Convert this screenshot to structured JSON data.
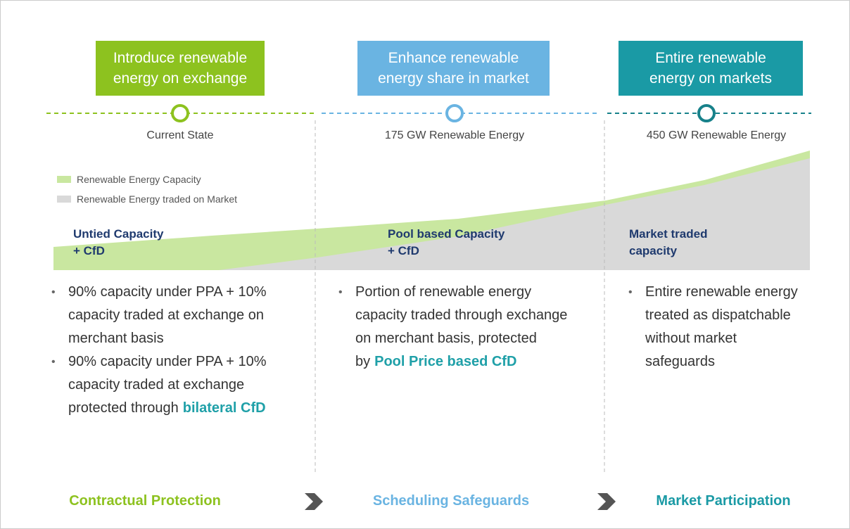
{
  "stages": [
    {
      "header": [
        "Introduce renewable",
        "energy on exchange"
      ],
      "milestone": "Current State",
      "capacity": [
        "Untied Capacity",
        "+ CfD"
      ],
      "bullets": [
        {
          "text": "90% capacity under PPA + 10% capacity traded at exchange on merchant basis"
        },
        {
          "text": "90% capacity under PPA + 10% capacity traded at exchange protected through",
          "emphasis": "bilateral CfD"
        }
      ],
      "footer": "Contractual Protection"
    },
    {
      "header": [
        "Enhance renewable",
        "energy share in market"
      ],
      "milestone": "175 GW Renewable Energy",
      "capacity": [
        "Pool based Capacity",
        "+ CfD"
      ],
      "bullets": [
        {
          "text": "Portion of renewable energy capacity traded through exchange on merchant basis, protected by",
          "emphasis": "Pool Price based CfD"
        }
      ],
      "footer": "Scheduling Safeguards"
    },
    {
      "header": [
        "Entire renewable",
        "energy on markets"
      ],
      "milestone": "450 GW Renewable Energy",
      "capacity": [
        "Market traded",
        "capacity"
      ],
      "bullets": [
        {
          "text": "Entire renewable energy treated as dispatchable without market safeguards"
        }
      ],
      "footer": "Market Participation"
    }
  ],
  "legend": [
    "Renewable Energy Capacity",
    "Renewable Energy traded on Market"
  ]
}
